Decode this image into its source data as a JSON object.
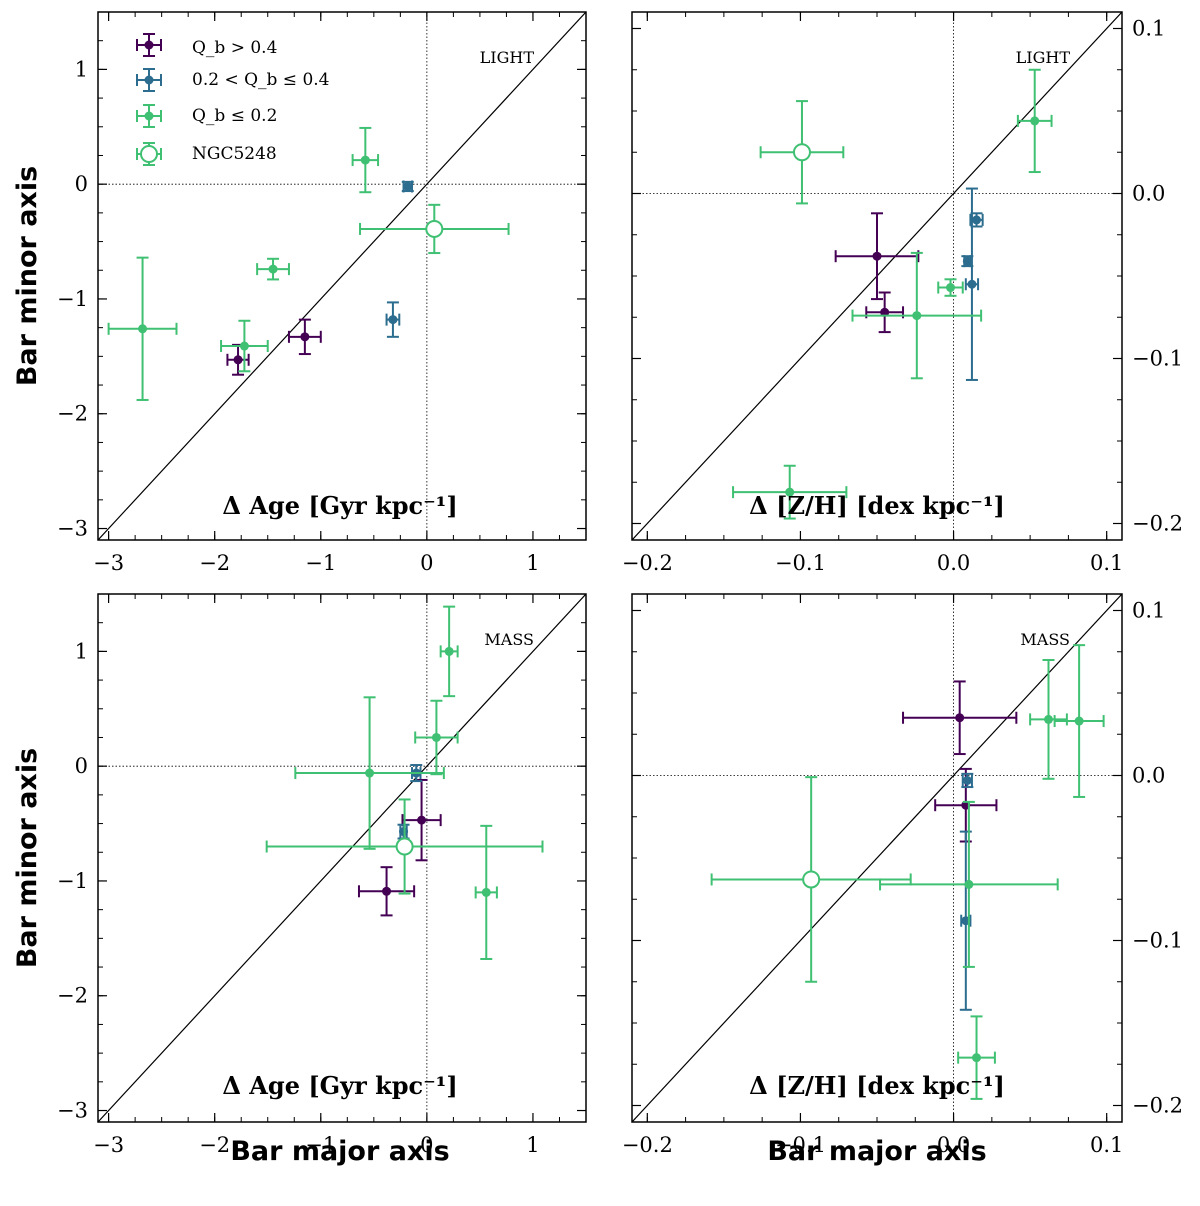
{
  "colors": {
    "high": "#440154",
    "mid": "#2c6d8f",
    "low": "#3fc072",
    "ngc": "#3fc072"
  },
  "axes": {
    "xlabel": "Bar major axis",
    "ylabel": "Bar minor axis"
  },
  "legend": {
    "entries": [
      {
        "key": "high",
        "label": "Q_b > 0.4",
        "marker": "dot"
      },
      {
        "key": "mid",
        "label": "0.2 < Q_b ≤ 0.4",
        "marker": "dot"
      },
      {
        "key": "low",
        "label": "Q_b ≤ 0.2",
        "marker": "dot"
      },
      {
        "key": "ngc",
        "label": "NGC5248",
        "marker": "open-circle"
      }
    ]
  },
  "chart_data": [
    {
      "type": "scatter",
      "title": "LIGHT",
      "metric": "Δ Age [Gyr kpc⁻¹]",
      "xlabel": "",
      "ylabel": "Bar minor axis",
      "xlim": [
        -3.1,
        1.5
      ],
      "ylim": [
        -3.1,
        1.5
      ],
      "xticks": [
        -3,
        -2,
        -1,
        0,
        1
      ],
      "yticks": [
        -3,
        -2,
        -1,
        0,
        1
      ],
      "xtick_labels": [
        "−3",
        "−2",
        "−1",
        "0",
        "1"
      ],
      "ytick_labels": [
        "−3",
        "−2",
        "−1",
        "0",
        "1"
      ],
      "show_xtick_labels": true,
      "ytick_side": "left",
      "points": [
        {
          "group": "high",
          "x": -1.78,
          "y": -1.53,
          "xerr": 0.1,
          "yerr": 0.13
        },
        {
          "group": "high",
          "x": -1.15,
          "y": -1.33,
          "xerr": 0.15,
          "yerr": 0.15
        },
        {
          "group": "mid",
          "x": -0.18,
          "y": -0.02,
          "xerr": 0.04,
          "yerr": 0.04
        },
        {
          "group": "mid",
          "x": -0.32,
          "y": -1.18,
          "xerr": 0.06,
          "yerr": 0.15
        },
        {
          "group": "low",
          "x": -2.68,
          "y": -1.26,
          "xerr": 0.32,
          "yerr": 0.62
        },
        {
          "group": "low",
          "x": -1.72,
          "y": -1.41,
          "xerr": 0.22,
          "yerr": 0.22
        },
        {
          "group": "low",
          "x": -1.45,
          "y": -0.74,
          "xerr": 0.15,
          "yerr": 0.09
        },
        {
          "group": "low",
          "x": -0.58,
          "y": 0.21,
          "xerr": 0.12,
          "yerr": 0.28
        },
        {
          "group": "ngc",
          "x": 0.07,
          "y": -0.39,
          "xerr": 0.7,
          "yerr": 0.21
        }
      ]
    },
    {
      "type": "scatter",
      "title": "LIGHT",
      "metric": "Δ [Z/H] [dex kpc⁻¹]",
      "xlabel": "",
      "ylabel": "",
      "xlim": [
        -0.21,
        0.11
      ],
      "ylim": [
        -0.21,
        0.11
      ],
      "xticks": [
        -0.2,
        -0.1,
        0.0,
        0.1
      ],
      "yticks": [
        -0.2,
        -0.1,
        0.0,
        0.1
      ],
      "xtick_labels": [
        "−0.2",
        "−0.1",
        "0.0",
        "0.1"
      ],
      "ytick_labels": [
        "−0.2",
        "−0.1",
        "0.0",
        "0.1"
      ],
      "show_xtick_labels": true,
      "ytick_side": "right",
      "points": [
        {
          "group": "high",
          "x": -0.05,
          "y": -0.038,
          "xerr": 0.027,
          "yerr": 0.026
        },
        {
          "group": "high",
          "x": -0.045,
          "y": -0.072,
          "xerr": 0.012,
          "yerr": 0.012
        },
        {
          "group": "mid",
          "x": 0.009,
          "y": -0.041,
          "xerr": 0.002,
          "yerr": 0.003
        },
        {
          "group": "mid",
          "x": 0.015,
          "y": -0.016,
          "xerr": 0.004,
          "yerr": 0.004
        },
        {
          "group": "mid",
          "x": 0.012,
          "y": -0.055,
          "xerr": 0.004,
          "yerr": 0.058
        },
        {
          "group": "low",
          "x": -0.002,
          "y": -0.057,
          "xerr": 0.008,
          "yerr": 0.005
        },
        {
          "group": "low",
          "x": -0.024,
          "y": -0.074,
          "xerr": 0.042,
          "yerr": 0.038
        },
        {
          "group": "low",
          "x": 0.053,
          "y": 0.044,
          "xerr": 0.011,
          "yerr": 0.031
        },
        {
          "group": "low",
          "x": -0.107,
          "y": -0.181,
          "xerr": 0.037,
          "yerr": 0.016
        },
        {
          "group": "ngc",
          "x": -0.099,
          "y": 0.025,
          "xerr": 0.027,
          "yerr": 0.031
        }
      ]
    },
    {
      "type": "scatter",
      "title": "MASS",
      "metric": "Δ Age [Gyr kpc⁻¹]",
      "xlabel": "Bar major axis",
      "ylabel": "Bar minor axis",
      "xlim": [
        -3.1,
        1.5
      ],
      "ylim": [
        -3.1,
        1.5
      ],
      "xticks": [
        -3,
        -2,
        -1,
        0,
        1
      ],
      "yticks": [
        -3,
        -2,
        -1,
        0,
        1
      ],
      "xtick_labels": [
        "−3",
        "−2",
        "−1",
        "0",
        "1"
      ],
      "ytick_labels": [
        "−3",
        "−2",
        "−1",
        "0",
        "1"
      ],
      "show_xtick_labels": true,
      "ytick_side": "left",
      "points": [
        {
          "group": "high",
          "x": -0.38,
          "y": -1.09,
          "xerr": 0.26,
          "yerr": 0.21
        },
        {
          "group": "high",
          "x": -0.05,
          "y": -0.47,
          "xerr": 0.18,
          "yerr": 0.35
        },
        {
          "group": "mid",
          "x": -0.1,
          "y": -0.06,
          "xerr": 0.04,
          "yerr": 0.07
        },
        {
          "group": "mid",
          "x": -0.22,
          "y": -0.57,
          "xerr": 0.03,
          "yerr": 0.06
        },
        {
          "group": "low",
          "x": -0.54,
          "y": -0.06,
          "xerr": 0.7,
          "yerr": 0.66
        },
        {
          "group": "low",
          "x": 0.09,
          "y": 0.25,
          "xerr": 0.2,
          "yerr": 0.32
        },
        {
          "group": "low",
          "x": 0.21,
          "y": 1.0,
          "xerr": 0.08,
          "yerr": 0.39
        },
        {
          "group": "low",
          "x": 0.56,
          "y": -1.1,
          "xerr": 0.1,
          "yerr": 0.58
        },
        {
          "group": "ngc",
          "x": -0.21,
          "y": -0.7,
          "xerr": 1.3,
          "yerr": 0.41
        }
      ]
    },
    {
      "type": "scatter",
      "title": "MASS",
      "metric": "Δ [Z/H] [dex kpc⁻¹]",
      "xlabel": "Bar major axis",
      "ylabel": "",
      "xlim": [
        -0.21,
        0.11
      ],
      "ylim": [
        -0.21,
        0.11
      ],
      "xticks": [
        -0.2,
        -0.1,
        0.0,
        0.1
      ],
      "yticks": [
        -0.2,
        -0.1,
        0.0,
        0.1
      ],
      "xtick_labels": [
        "−0.2",
        "−0.1",
        "0.0",
        "0.1"
      ],
      "ytick_labels": [
        "−0.2",
        "−0.1",
        "0.0",
        "0.1"
      ],
      "show_xtick_labels": true,
      "ytick_side": "right",
      "points": [
        {
          "group": "high",
          "x": 0.004,
          "y": 0.035,
          "xerr": 0.037,
          "yerr": 0.022
        },
        {
          "group": "high",
          "x": 0.008,
          "y": -0.018,
          "xerr": 0.02,
          "yerr": 0.022
        },
        {
          "group": "mid",
          "x": 0.009,
          "y": -0.003,
          "xerr": 0.003,
          "yerr": 0.004
        },
        {
          "group": "mid",
          "x": 0.008,
          "y": -0.088,
          "xerr": 0.003,
          "yerr": 0.054
        },
        {
          "group": "low",
          "x": 0.01,
          "y": -0.066,
          "xerr": 0.058,
          "yerr": 0.05
        },
        {
          "group": "low",
          "x": 0.062,
          "y": 0.034,
          "xerr": 0.012,
          "yerr": 0.036
        },
        {
          "group": "low",
          "x": 0.082,
          "y": 0.033,
          "xerr": 0.016,
          "yerr": 0.046
        },
        {
          "group": "low",
          "x": 0.015,
          "y": -0.171,
          "xerr": 0.012,
          "yerr": 0.025
        },
        {
          "group": "ngc",
          "x": -0.093,
          "y": -0.063,
          "xerr": 0.065,
          "yerr": 0.062
        }
      ]
    }
  ]
}
